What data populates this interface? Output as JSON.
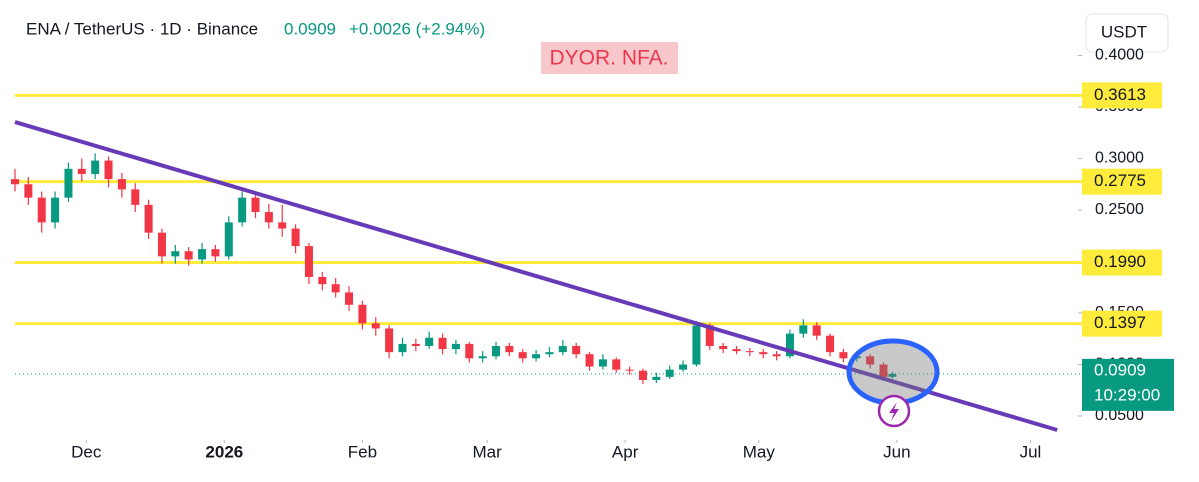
{
  "chart_data": {
    "type": "candlestick",
    "header": {
      "symbol": "ENA / TetherUS · 1D · Binance",
      "price": "0.0909",
      "change": "+0.0026 (+2.94%)"
    },
    "annotation": "DYOR. NFA.",
    "currency_button": "USDT",
    "up_color": "#089981",
    "down_color": "#f23645",
    "x": [
      0,
      3,
      6,
      9,
      12,
      15,
      18,
      21,
      24,
      27,
      30,
      33,
      36,
      39,
      42,
      45,
      48,
      51,
      54,
      57,
      60,
      63,
      66,
      69,
      72,
      75,
      78,
      81,
      84,
      87,
      90,
      93,
      96,
      99,
      102,
      105,
      108,
      111,
      114,
      117,
      120,
      123,
      126,
      129,
      132,
      135,
      138,
      141,
      144,
      147,
      150,
      153,
      156,
      159,
      162,
      165,
      168,
      171,
      174,
      177,
      180,
      183,
      186,
      189,
      192,
      195,
      197
    ],
    "open": [
      0.28,
      0.275,
      0.262,
      0.238,
      0.262,
      0.29,
      0.285,
      0.298,
      0.28,
      0.27,
      0.255,
      0.228,
      0.205,
      0.21,
      0.202,
      0.212,
      0.205,
      0.238,
      0.262,
      0.248,
      0.238,
      0.232,
      0.215,
      0.185,
      0.178,
      0.17,
      0.158,
      0.14,
      0.135,
      0.112,
      0.12,
      0.118,
      0.126,
      0.115,
      0.12,
      0.106,
      0.108,
      0.118,
      0.112,
      0.106,
      0.11,
      0.112,
      0.118,
      0.11,
      0.098,
      0.105,
      0.095,
      0.094,
      0.085,
      0.088,
      0.095,
      0.1,
      0.138,
      0.118,
      0.115,
      0.113,
      0.112,
      0.11,
      0.108,
      0.13,
      0.138,
      0.128,
      0.112,
      0.106,
      0.108,
      0.1,
      0.088
    ],
    "high": [
      0.29,
      0.282,
      0.268,
      0.268,
      0.296,
      0.3,
      0.305,
      0.302,
      0.286,
      0.276,
      0.26,
      0.232,
      0.216,
      0.214,
      0.218,
      0.216,
      0.244,
      0.268,
      0.266,
      0.256,
      0.255,
      0.236,
      0.218,
      0.19,
      0.184,
      0.176,
      0.162,
      0.146,
      0.138,
      0.126,
      0.125,
      0.132,
      0.13,
      0.124,
      0.122,
      0.113,
      0.122,
      0.121,
      0.115,
      0.114,
      0.117,
      0.124,
      0.121,
      0.112,
      0.11,
      0.107,
      0.098,
      0.096,
      0.092,
      0.099,
      0.104,
      0.142,
      0.14,
      0.121,
      0.118,
      0.116,
      0.115,
      0.113,
      0.134,
      0.144,
      0.141,
      0.13,
      0.115,
      0.112,
      0.11,
      0.102,
      0.093
    ],
    "low": [
      0.268,
      0.255,
      0.228,
      0.232,
      0.258,
      0.278,
      0.28,
      0.272,
      0.262,
      0.248,
      0.222,
      0.198,
      0.198,
      0.196,
      0.198,
      0.2,
      0.202,
      0.234,
      0.242,
      0.232,
      0.224,
      0.208,
      0.178,
      0.172,
      0.165,
      0.152,
      0.134,
      0.128,
      0.106,
      0.108,
      0.113,
      0.115,
      0.11,
      0.11,
      0.102,
      0.102,
      0.105,
      0.108,
      0.102,
      0.103,
      0.107,
      0.109,
      0.106,
      0.094,
      0.095,
      0.092,
      0.09,
      0.081,
      0.082,
      0.086,
      0.093,
      0.098,
      0.114,
      0.111,
      0.11,
      0.108,
      0.106,
      0.104,
      0.106,
      0.126,
      0.124,
      0.108,
      0.102,
      0.103,
      0.096,
      0.085,
      0.086
    ],
    "close": [
      0.275,
      0.262,
      0.238,
      0.262,
      0.29,
      0.285,
      0.298,
      0.28,
      0.27,
      0.255,
      0.228,
      0.205,
      0.21,
      0.202,
      0.212,
      0.205,
      0.238,
      0.262,
      0.248,
      0.238,
      0.232,
      0.215,
      0.185,
      0.178,
      0.17,
      0.158,
      0.14,
      0.135,
      0.112,
      0.12,
      0.118,
      0.126,
      0.115,
      0.12,
      0.106,
      0.108,
      0.118,
      0.112,
      0.106,
      0.11,
      0.112,
      0.118,
      0.11,
      0.098,
      0.105,
      0.095,
      0.094,
      0.085,
      0.088,
      0.095,
      0.1,
      0.138,
      0.118,
      0.115,
      0.113,
      0.112,
      0.11,
      0.108,
      0.13,
      0.138,
      0.128,
      0.112,
      0.106,
      0.108,
      0.1,
      0.088,
      0.0909
    ],
    "xlim": [
      0,
      238
    ],
    "xticks": [
      {
        "value": 16,
        "label": "Dec"
      },
      {
        "value": 47,
        "label": "2026"
      },
      {
        "value": 78,
        "label": "Feb"
      },
      {
        "value": 106,
        "label": "Mar"
      },
      {
        "value": 137,
        "label": "Apr"
      },
      {
        "value": 167,
        "label": "May"
      },
      {
        "value": 198,
        "label": "Jun"
      },
      {
        "value": 228,
        "label": "Jul"
      }
    ],
    "ylim": [
      0.0267,
      0.4539
    ],
    "yticks": [
      {
        "value": 0.05,
        "label": "0.0500"
      },
      {
        "value": 0.1,
        "label": "0.1000"
      },
      {
        "value": 0.15,
        "label": "0.1500"
      },
      {
        "value": 0.2,
        "label": "0.2000"
      },
      {
        "value": 0.25,
        "label": "0.2500"
      },
      {
        "value": 0.3,
        "label": "0.3000"
      },
      {
        "value": 0.35,
        "label": "0.3500"
      },
      {
        "value": 0.4,
        "label": "0.4000"
      }
    ],
    "levels": [
      {
        "value": 0.3613,
        "label": "0.3613"
      },
      {
        "value": 0.2775,
        "label": "0.2775"
      },
      {
        "value": 0.199,
        "label": "0.1990"
      },
      {
        "value": 0.1397,
        "label": "0.1397"
      }
    ],
    "level_color": "#ffeb3b",
    "trendline": {
      "x": [
        0,
        234
      ],
      "values": [
        0.3354,
        0.0364
      ],
      "color": "#673ab7"
    },
    "last": {
      "value": 0.0909,
      "label": "0.0909",
      "countdown": "10:29:00"
    }
  }
}
